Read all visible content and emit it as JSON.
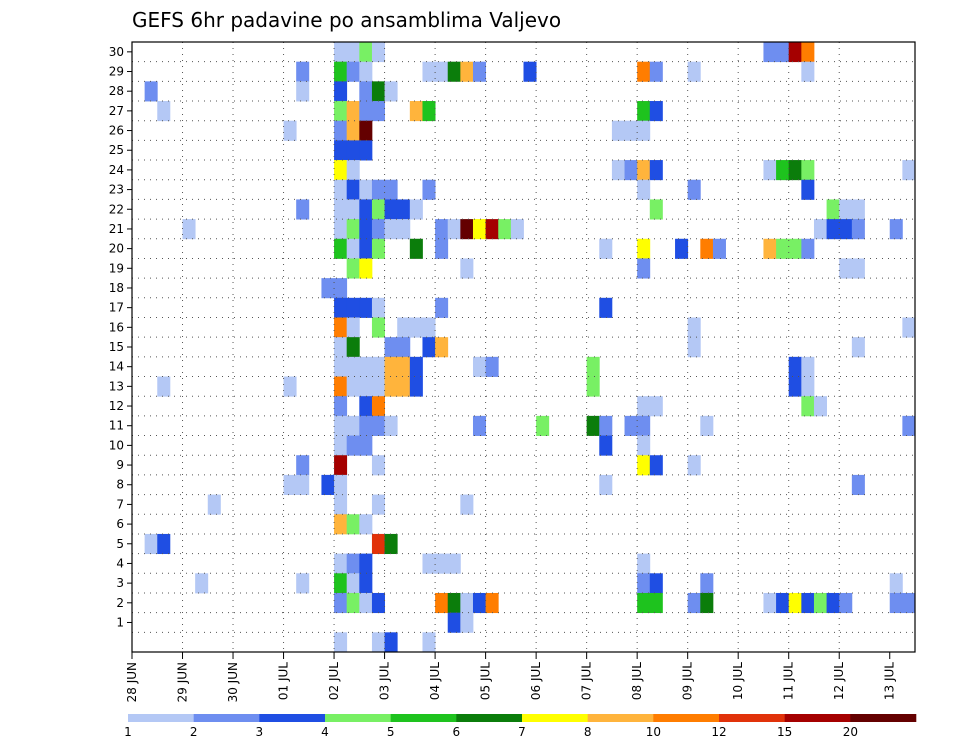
{
  "chart_data": {
    "type": "heatmap",
    "title": "GEFS 6hr padavine po ansamblima Valjevo",
    "xlabel": "",
    "ylabel": "",
    "y_labels": [
      "1",
      "2",
      "3",
      "4",
      "5",
      "6",
      "7",
      "8",
      "9",
      "10",
      "11",
      "12",
      "13",
      "14",
      "15",
      "16",
      "17",
      "18",
      "19",
      "20",
      "21",
      "22",
      "23",
      "24",
      "25",
      "26",
      "27",
      "28",
      "29",
      "30"
    ],
    "x_tick_labels": [
      "28 JUN",
      "29 JUN",
      "30 JUN",
      "01 JUL",
      "02 JUL",
      "03 JUL",
      "04 JUL",
      "05 JUL",
      "06 JUL",
      "07 JUL",
      "08 JUL",
      "09 JUL",
      "10 JUL",
      "11 JUL",
      "12 JUL",
      "13 JUL"
    ],
    "x_range_steps": [
      0,
      61
    ],
    "grid": true,
    "colorbar": {
      "labels": [
        "1",
        "2",
        "3",
        "4",
        "5",
        "6",
        "7",
        "8",
        "10",
        "12",
        "15",
        "20"
      ],
      "colors": [
        "#b4c8f5",
        "#6e8ef0",
        "#1f4ee3",
        "#78f064",
        "#1ec31e",
        "#0b7d0b",
        "#ffff00",
        "#ffb43c",
        "#ff7d00",
        "#e1320a",
        "#a50000",
        "#640000"
      ]
    },
    "cells": [
      {
        "m": 30,
        "s": 16,
        "v": 1
      },
      {
        "m": 30,
        "s": 17,
        "v": 1
      },
      {
        "m": 30,
        "s": 18,
        "v": 4
      },
      {
        "m": 30,
        "s": 19,
        "v": 1
      },
      {
        "m": 30,
        "s": 50,
        "v": 2
      },
      {
        "m": 30,
        "s": 51,
        "v": 2
      },
      {
        "m": 30,
        "s": 52,
        "v": 11
      },
      {
        "m": 30,
        "s": 53,
        "v": 9
      },
      {
        "m": 29,
        "s": 13,
        "v": 2
      },
      {
        "m": 29,
        "s": 16,
        "v": 5
      },
      {
        "m": 29,
        "s": 17,
        "v": 2
      },
      {
        "m": 29,
        "s": 18,
        "v": 1
      },
      {
        "m": 29,
        "s": 23,
        "v": 1
      },
      {
        "m": 29,
        "s": 24,
        "v": 1
      },
      {
        "m": 29,
        "s": 25,
        "v": 6
      },
      {
        "m": 29,
        "s": 26,
        "v": 8
      },
      {
        "m": 29,
        "s": 27,
        "v": 2
      },
      {
        "m": 29,
        "s": 31,
        "v": 3
      },
      {
        "m": 29,
        "s": 40,
        "v": 9
      },
      {
        "m": 29,
        "s": 41,
        "v": 2
      },
      {
        "m": 29,
        "s": 44,
        "v": 1
      },
      {
        "m": 29,
        "s": 53,
        "v": 1
      },
      {
        "m": 28,
        "s": 1,
        "v": 2
      },
      {
        "m": 28,
        "s": 13,
        "v": 1
      },
      {
        "m": 28,
        "s": 16,
        "v": 3
      },
      {
        "m": 28,
        "s": 18,
        "v": 2
      },
      {
        "m": 28,
        "s": 19,
        "v": 6
      },
      {
        "m": 28,
        "s": 20,
        "v": 1
      },
      {
        "m": 27,
        "s": 2,
        "v": 1
      },
      {
        "m": 27,
        "s": 16,
        "v": 4
      },
      {
        "m": 27,
        "s": 17,
        "v": 8
      },
      {
        "m": 27,
        "s": 18,
        "v": 2
      },
      {
        "m": 27,
        "s": 19,
        "v": 2
      },
      {
        "m": 27,
        "s": 22,
        "v": 8
      },
      {
        "m": 27,
        "s": 23,
        "v": 5
      },
      {
        "m": 27,
        "s": 40,
        "v": 5
      },
      {
        "m": 27,
        "s": 41,
        "v": 3
      },
      {
        "m": 26,
        "s": 12,
        "v": 1
      },
      {
        "m": 26,
        "s": 16,
        "v": 2
      },
      {
        "m": 26,
        "s": 17,
        "v": 8
      },
      {
        "m": 26,
        "s": 18,
        "v": 12
      },
      {
        "m": 26,
        "s": 38,
        "v": 1
      },
      {
        "m": 26,
        "s": 39,
        "v": 1
      },
      {
        "m": 26,
        "s": 40,
        "v": 1
      },
      {
        "m": 25,
        "s": 16,
        "v": 3
      },
      {
        "m": 25,
        "s": 17,
        "v": 3
      },
      {
        "m": 25,
        "s": 18,
        "v": 3
      },
      {
        "m": 24,
        "s": 16,
        "v": 7
      },
      {
        "m": 24,
        "s": 17,
        "v": 1
      },
      {
        "m": 24,
        "s": 38,
        "v": 1
      },
      {
        "m": 24,
        "s": 39,
        "v": 2
      },
      {
        "m": 24,
        "s": 40,
        "v": 8
      },
      {
        "m": 24,
        "s": 41,
        "v": 3
      },
      {
        "m": 24,
        "s": 50,
        "v": 1
      },
      {
        "m": 24,
        "s": 51,
        "v": 5
      },
      {
        "m": 24,
        "s": 52,
        "v": 6
      },
      {
        "m": 24,
        "s": 53,
        "v": 4
      },
      {
        "m": 24,
        "s": 61,
        "v": 1
      },
      {
        "m": 23,
        "s": 16,
        "v": 1
      },
      {
        "m": 23,
        "s": 17,
        "v": 3
      },
      {
        "m": 23,
        "s": 18,
        "v": 1
      },
      {
        "m": 23,
        "s": 19,
        "v": 2
      },
      {
        "m": 23,
        "s": 20,
        "v": 2
      },
      {
        "m": 23,
        "s": 23,
        "v": 2
      },
      {
        "m": 23,
        "s": 40,
        "v": 1
      },
      {
        "m": 23,
        "s": 44,
        "v": 2
      },
      {
        "m": 23,
        "s": 53,
        "v": 3
      },
      {
        "m": 22,
        "s": 13,
        "v": 2
      },
      {
        "m": 22,
        "s": 16,
        "v": 1
      },
      {
        "m": 22,
        "s": 17,
        "v": 1
      },
      {
        "m": 22,
        "s": 18,
        "v": 3
      },
      {
        "m": 22,
        "s": 19,
        "v": 4
      },
      {
        "m": 22,
        "s": 20,
        "v": 3
      },
      {
        "m": 22,
        "s": 21,
        "v": 3
      },
      {
        "m": 22,
        "s": 22,
        "v": 1
      },
      {
        "m": 22,
        "s": 41,
        "v": 4
      },
      {
        "m": 22,
        "s": 55,
        "v": 4
      },
      {
        "m": 22,
        "s": 56,
        "v": 1
      },
      {
        "m": 22,
        "s": 57,
        "v": 1
      },
      {
        "m": 21,
        "s": 4,
        "v": 1
      },
      {
        "m": 21,
        "s": 16,
        "v": 1
      },
      {
        "m": 21,
        "s": 17,
        "v": 4
      },
      {
        "m": 21,
        "s": 18,
        "v": 3
      },
      {
        "m": 21,
        "s": 19,
        "v": 2
      },
      {
        "m": 21,
        "s": 20,
        "v": 1
      },
      {
        "m": 21,
        "s": 21,
        "v": 1
      },
      {
        "m": 21,
        "s": 24,
        "v": 2
      },
      {
        "m": 21,
        "s": 25,
        "v": 1
      },
      {
        "m": 21,
        "s": 26,
        "v": 12
      },
      {
        "m": 21,
        "s": 27,
        "v": 7
      },
      {
        "m": 21,
        "s": 28,
        "v": 11
      },
      {
        "m": 21,
        "s": 29,
        "v": 4
      },
      {
        "m": 21,
        "s": 30,
        "v": 1
      },
      {
        "m": 21,
        "s": 54,
        "v": 1
      },
      {
        "m": 21,
        "s": 55,
        "v": 3
      },
      {
        "m": 21,
        "s": 56,
        "v": 3
      },
      {
        "m": 21,
        "s": 57,
        "v": 2
      },
      {
        "m": 21,
        "s": 60,
        "v": 2
      },
      {
        "m": 20,
        "s": 16,
        "v": 5
      },
      {
        "m": 20,
        "s": 17,
        "v": 1
      },
      {
        "m": 20,
        "s": 18,
        "v": 3
      },
      {
        "m": 20,
        "s": 19,
        "v": 4
      },
      {
        "m": 20,
        "s": 22,
        "v": 6
      },
      {
        "m": 20,
        "s": 24,
        "v": 2
      },
      {
        "m": 20,
        "s": 37,
        "v": 1
      },
      {
        "m": 20,
        "s": 40,
        "v": 7
      },
      {
        "m": 20,
        "s": 43,
        "v": 3
      },
      {
        "m": 20,
        "s": 45,
        "v": 9
      },
      {
        "m": 20,
        "s": 46,
        "v": 2
      },
      {
        "m": 20,
        "s": 50,
        "v": 8
      },
      {
        "m": 20,
        "s": 51,
        "v": 4
      },
      {
        "m": 20,
        "s": 52,
        "v": 4
      },
      {
        "m": 20,
        "s": 53,
        "v": 2
      },
      {
        "m": 19,
        "s": 17,
        "v": 4
      },
      {
        "m": 19,
        "s": 18,
        "v": 7
      },
      {
        "m": 19,
        "s": 26,
        "v": 1
      },
      {
        "m": 19,
        "s": 40,
        "v": 2
      },
      {
        "m": 19,
        "s": 56,
        "v": 1
      },
      {
        "m": 19,
        "s": 57,
        "v": 1
      },
      {
        "m": 18,
        "s": 15,
        "v": 2
      },
      {
        "m": 18,
        "s": 16,
        "v": 2
      },
      {
        "m": 17,
        "s": 16,
        "v": 3
      },
      {
        "m": 17,
        "s": 17,
        "v": 3
      },
      {
        "m": 17,
        "s": 18,
        "v": 3
      },
      {
        "m": 17,
        "s": 19,
        "v": 1
      },
      {
        "m": 17,
        "s": 24,
        "v": 2
      },
      {
        "m": 17,
        "s": 37,
        "v": 3
      },
      {
        "m": 16,
        "s": 16,
        "v": 9
      },
      {
        "m": 16,
        "s": 17,
        "v": 1
      },
      {
        "m": 16,
        "s": 19,
        "v": 4
      },
      {
        "m": 16,
        "s": 21,
        "v": 1
      },
      {
        "m": 16,
        "s": 22,
        "v": 1
      },
      {
        "m": 16,
        "s": 23,
        "v": 1
      },
      {
        "m": 16,
        "s": 44,
        "v": 1
      },
      {
        "m": 16,
        "s": 61,
        "v": 1
      },
      {
        "m": 15,
        "s": 16,
        "v": 1
      },
      {
        "m": 15,
        "s": 17,
        "v": 6
      },
      {
        "m": 15,
        "s": 20,
        "v": 2
      },
      {
        "m": 15,
        "s": 21,
        "v": 2
      },
      {
        "m": 15,
        "s": 23,
        "v": 3
      },
      {
        "m": 15,
        "s": 24,
        "v": 8
      },
      {
        "m": 15,
        "s": 44,
        "v": 1
      },
      {
        "m": 15,
        "s": 57,
        "v": 1
      },
      {
        "m": 14,
        "s": 16,
        "v": 1
      },
      {
        "m": 14,
        "s": 17,
        "v": 1
      },
      {
        "m": 14,
        "s": 18,
        "v": 1
      },
      {
        "m": 14,
        "s": 19,
        "v": 1
      },
      {
        "m": 14,
        "s": 20,
        "v": 8
      },
      {
        "m": 14,
        "s": 21,
        "v": 8
      },
      {
        "m": 14,
        "s": 22,
        "v": 3
      },
      {
        "m": 14,
        "s": 27,
        "v": 1
      },
      {
        "m": 14,
        "s": 28,
        "v": 2
      },
      {
        "m": 14,
        "s": 36,
        "v": 4
      },
      {
        "m": 14,
        "s": 52,
        "v": 3
      },
      {
        "m": 14,
        "s": 53,
        "v": 1
      },
      {
        "m": 13,
        "s": 2,
        "v": 1
      },
      {
        "m": 13,
        "s": 12,
        "v": 1
      },
      {
        "m": 13,
        "s": 16,
        "v": 9
      },
      {
        "m": 13,
        "s": 17,
        "v": 1
      },
      {
        "m": 13,
        "s": 18,
        "v": 1
      },
      {
        "m": 13,
        "s": 19,
        "v": 1
      },
      {
        "m": 13,
        "s": 20,
        "v": 8
      },
      {
        "m": 13,
        "s": 21,
        "v": 8
      },
      {
        "m": 13,
        "s": 22,
        "v": 3
      },
      {
        "m": 13,
        "s": 36,
        "v": 4
      },
      {
        "m": 13,
        "s": 52,
        "v": 3
      },
      {
        "m": 13,
        "s": 53,
        "v": 1
      },
      {
        "m": 12,
        "s": 16,
        "v": 2
      },
      {
        "m": 12,
        "s": 18,
        "v": 3
      },
      {
        "m": 12,
        "s": 19,
        "v": 9
      },
      {
        "m": 12,
        "s": 40,
        "v": 1
      },
      {
        "m": 12,
        "s": 41,
        "v": 1
      },
      {
        "m": 12,
        "s": 53,
        "v": 4
      },
      {
        "m": 12,
        "s": 54,
        "v": 1
      },
      {
        "m": 11,
        "s": 16,
        "v": 1
      },
      {
        "m": 11,
        "s": 17,
        "v": 1
      },
      {
        "m": 11,
        "s": 18,
        "v": 2
      },
      {
        "m": 11,
        "s": 19,
        "v": 2
      },
      {
        "m": 11,
        "s": 20,
        "v": 1
      },
      {
        "m": 11,
        "s": 27,
        "v": 2
      },
      {
        "m": 11,
        "s": 32,
        "v": 4
      },
      {
        "m": 11,
        "s": 36,
        "v": 6
      },
      {
        "m": 11,
        "s": 37,
        "v": 2
      },
      {
        "m": 11,
        "s": 39,
        "v": 2
      },
      {
        "m": 11,
        "s": 40,
        "v": 2
      },
      {
        "m": 11,
        "s": 45,
        "v": 1
      },
      {
        "m": 11,
        "s": 61,
        "v": 2
      },
      {
        "m": 10,
        "s": 16,
        "v": 1
      },
      {
        "m": 10,
        "s": 17,
        "v": 2
      },
      {
        "m": 10,
        "s": 18,
        "v": 2
      },
      {
        "m": 10,
        "s": 37,
        "v": 3
      },
      {
        "m": 10,
        "s": 40,
        "v": 1
      },
      {
        "m": 9,
        "s": 13,
        "v": 2
      },
      {
        "m": 9,
        "s": 16,
        "v": 11
      },
      {
        "m": 9,
        "s": 19,
        "v": 1
      },
      {
        "m": 9,
        "s": 40,
        "v": 7
      },
      {
        "m": 9,
        "s": 41,
        "v": 3
      },
      {
        "m": 9,
        "s": 44,
        "v": 1
      },
      {
        "m": 8,
        "s": 12,
        "v": 1
      },
      {
        "m": 8,
        "s": 13,
        "v": 1
      },
      {
        "m": 8,
        "s": 15,
        "v": 3
      },
      {
        "m": 8,
        "s": 16,
        "v": 1
      },
      {
        "m": 8,
        "s": 37,
        "v": 1
      },
      {
        "m": 8,
        "s": 57,
        "v": 2
      },
      {
        "m": 7,
        "s": 6,
        "v": 1
      },
      {
        "m": 7,
        "s": 16,
        "v": 1
      },
      {
        "m": 7,
        "s": 19,
        "v": 1
      },
      {
        "m": 7,
        "s": 26,
        "v": 1
      },
      {
        "m": 6,
        "s": 16,
        "v": 8
      },
      {
        "m": 6,
        "s": 17,
        "v": 4
      },
      {
        "m": 6,
        "s": 18,
        "v": 1
      },
      {
        "m": 5,
        "s": 1,
        "v": 1
      },
      {
        "m": 5,
        "s": 2,
        "v": 3
      },
      {
        "m": 5,
        "s": 19,
        "v": 10
      },
      {
        "m": 5,
        "s": 20,
        "v": 6
      },
      {
        "m": 4,
        "s": 16,
        "v": 1
      },
      {
        "m": 4,
        "s": 17,
        "v": 2
      },
      {
        "m": 4,
        "s": 18,
        "v": 3
      },
      {
        "m": 4,
        "s": 23,
        "v": 1
      },
      {
        "m": 4,
        "s": 24,
        "v": 1
      },
      {
        "m": 4,
        "s": 25,
        "v": 1
      },
      {
        "m": 4,
        "s": 40,
        "v": 1
      },
      {
        "m": 3,
        "s": 5,
        "v": 1
      },
      {
        "m": 3,
        "s": 13,
        "v": 1
      },
      {
        "m": 3,
        "s": 16,
        "v": 5
      },
      {
        "m": 3,
        "s": 17,
        "v": 1
      },
      {
        "m": 3,
        "s": 18,
        "v": 3
      },
      {
        "m": 3,
        "s": 40,
        "v": 2
      },
      {
        "m": 3,
        "s": 41,
        "v": 3
      },
      {
        "m": 3,
        "s": 45,
        "v": 2
      },
      {
        "m": 3,
        "s": 60,
        "v": 1
      },
      {
        "m": 2,
        "s": 16,
        "v": 2
      },
      {
        "m": 2,
        "s": 17,
        "v": 4
      },
      {
        "m": 2,
        "s": 18,
        "v": 1
      },
      {
        "m": 2,
        "s": 19,
        "v": 3
      },
      {
        "m": 2,
        "s": 24,
        "v": 9
      },
      {
        "m": 2,
        "s": 25,
        "v": 6
      },
      {
        "m": 2,
        "s": 26,
        "v": 1
      },
      {
        "m": 2,
        "s": 27,
        "v": 3
      },
      {
        "m": 2,
        "s": 28,
        "v": 9
      },
      {
        "m": 2,
        "s": 40,
        "v": 5
      },
      {
        "m": 2,
        "s": 41,
        "v": 5
      },
      {
        "m": 2,
        "s": 44,
        "v": 2
      },
      {
        "m": 2,
        "s": 45,
        "v": 6
      },
      {
        "m": 2,
        "s": 50,
        "v": 1
      },
      {
        "m": 2,
        "s": 51,
        "v": 3
      },
      {
        "m": 2,
        "s": 52,
        "v": 7
      },
      {
        "m": 2,
        "s": 53,
        "v": 3
      },
      {
        "m": 2,
        "s": 54,
        "v": 4
      },
      {
        "m": 2,
        "s": 55,
        "v": 3
      },
      {
        "m": 2,
        "s": 56,
        "v": 2
      },
      {
        "m": 2,
        "s": 60,
        "v": 2
      },
      {
        "m": 2,
        "s": 61,
        "v": 2
      },
      {
        "m": 1,
        "s": 25,
        "v": 3
      },
      {
        "m": 1,
        "s": 26,
        "v": 1
      },
      {
        "m": 0,
        "s": 16,
        "v": 1
      },
      {
        "m": 0,
        "s": 19,
        "v": 1
      },
      {
        "m": 0,
        "s": 20,
        "v": 3
      },
      {
        "m": 0,
        "s": 23,
        "v": 1
      }
    ]
  }
}
